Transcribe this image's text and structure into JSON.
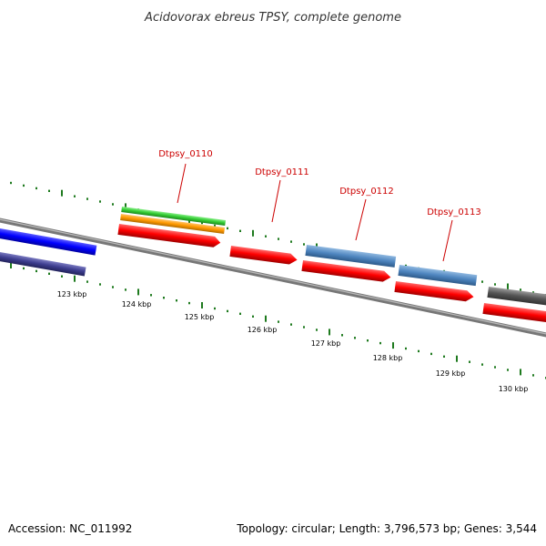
{
  "title": "Acidovorax ebreus TPSY, complete genome",
  "footer": {
    "accession": "Accession: NC_011992",
    "summary": "Topology: circular; Length: 3,796,573 bp; Genes: 3,544"
  },
  "colors": {
    "backbone": "#888888",
    "tick": "#1e7a1e",
    "label": "#cc0000",
    "cds_red": "#ff0000",
    "cds_blue": "#4f86c0",
    "gene_blue": "#0000ff",
    "gene_navy": "#3d3d8f",
    "green": "#33cc33",
    "orange": "#ff9900",
    "gray": "#555555"
  },
  "scale": {
    "tick_labels": [
      {
        "kbp": 123,
        "text": "123 kbp"
      },
      {
        "kbp": 124,
        "text": "124 kbp"
      },
      {
        "kbp": 125,
        "text": "125 kbp"
      },
      {
        "kbp": 126,
        "text": "126 kbp"
      },
      {
        "kbp": 127,
        "text": "127 kbp"
      },
      {
        "kbp": 128,
        "text": "128 kbp"
      },
      {
        "kbp": 129,
        "text": "129 kbp"
      },
      {
        "kbp": 130,
        "text": "130 kbp"
      }
    ]
  },
  "gene_labels": [
    {
      "text": "Dtpsy_0110"
    },
    {
      "text": "Dtpsy_0111"
    },
    {
      "text": "Dtpsy_0112"
    },
    {
      "text": "Dtpsy_0113"
    }
  ]
}
